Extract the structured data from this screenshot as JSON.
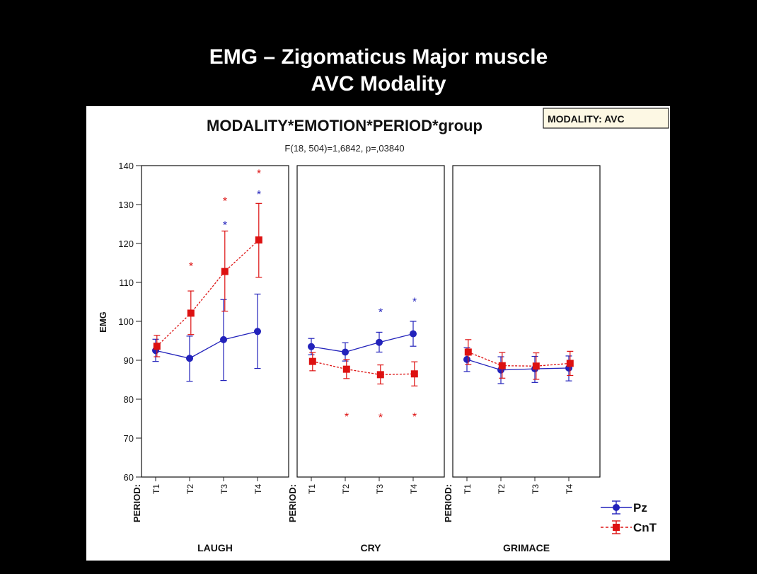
{
  "slide": {
    "title_line1": "EMG – Zigomaticus Major muscle",
    "title_line2": "AVC Modality"
  },
  "chart_data": {
    "type": "line",
    "title": "MODALITY*EMOTION*PERIOD*group",
    "subtitle": "F(18, 504)=1,6842, p=,03840",
    "filter_label": "MODALITY: AVC",
    "ylabel": "EMG",
    "ylim": [
      60,
      140
    ],
    "yticks": [
      60,
      70,
      80,
      90,
      100,
      110,
      120,
      130,
      140
    ],
    "xlabel_prefix": "PERIOD:",
    "categories": [
      "T1",
      "T2",
      "T3",
      "T4"
    ],
    "colors": {
      "Pz": "#2222bb",
      "CnT": "#dd1111"
    },
    "legend_position": "bottom-right",
    "panels": [
      {
        "label": "LAUGH",
        "series": [
          {
            "name": "Pz",
            "values": [
              92.5,
              90.5,
              95.3,
              97.4
            ],
            "err_low": [
              89.7,
              84.6,
              84.8,
              87.9
            ],
            "err_high": [
              95.4,
              96.2,
              105.6,
              107.0
            ],
            "marker": "circle"
          },
          {
            "name": "CnT",
            "values": [
              93.6,
              102.1,
              112.8,
              120.9
            ],
            "err_low": [
              90.9,
              96.6,
              102.6,
              111.3
            ],
            "err_high": [
              96.4,
              107.8,
              123.2,
              130.3
            ],
            "marker": "square"
          }
        ],
        "stars": [
          {
            "x": "T2",
            "y": 114.5,
            "series": "CnT"
          },
          {
            "x": "T3",
            "y": 131.2,
            "series": "CnT"
          },
          {
            "x": "T3",
            "y": 125.0,
            "series": "Pz"
          },
          {
            "x": "T4",
            "y": 138.3,
            "series": "CnT"
          },
          {
            "x": "T4",
            "y": 132.9,
            "series": "Pz"
          }
        ]
      },
      {
        "label": "CRY",
        "series": [
          {
            "name": "Pz",
            "values": [
              93.5,
              92.1,
              94.6,
              96.8
            ],
            "err_low": [
              91.4,
              89.8,
              92.1,
              93.6
            ],
            "err_high": [
              95.6,
              94.5,
              97.2,
              100.0
            ],
            "marker": "circle"
          },
          {
            "name": "CnT",
            "values": [
              89.7,
              87.7,
              86.3,
              86.5
            ],
            "err_low": [
              87.3,
              85.3,
              83.9,
              83.4
            ],
            "err_high": [
              92.0,
              90.2,
              88.8,
              89.6
            ],
            "marker": "square"
          }
        ],
        "stars": [
          {
            "x": "T2",
            "y": 75.8,
            "series": "CnT"
          },
          {
            "x": "T3",
            "y": 75.6,
            "series": "CnT"
          },
          {
            "x": "T3",
            "y": 102.6,
            "series": "Pz"
          },
          {
            "x": "T4",
            "y": 75.8,
            "series": "CnT"
          },
          {
            "x": "T4",
            "y": 105.4,
            "series": "Pz"
          }
        ]
      },
      {
        "label": "GRIMACE",
        "series": [
          {
            "name": "Pz",
            "values": [
              90.2,
              87.5,
              87.8,
              88.0
            ],
            "err_low": [
              87.1,
              84.0,
              84.3,
              84.7
            ],
            "err_high": [
              93.2,
              90.9,
              91.0,
              91.1
            ],
            "marker": "circle"
          },
          {
            "name": "CnT",
            "values": [
              92.1,
              88.6,
              88.5,
              89.2
            ],
            "err_low": [
              88.9,
              85.4,
              85.1,
              86.1
            ],
            "err_high": [
              95.3,
              92.0,
              91.9,
              92.3
            ],
            "marker": "square"
          }
        ],
        "stars": []
      }
    ]
  }
}
